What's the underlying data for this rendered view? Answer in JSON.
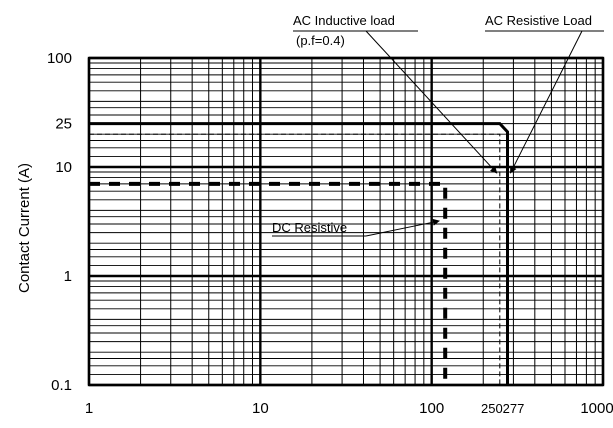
{
  "chart_data": {
    "type": "line",
    "title": "",
    "xlabel": "",
    "ylabel": "Contact Current (A)",
    "x_scale": "log",
    "y_scale": "log",
    "xlim": [
      1,
      1000
    ],
    "ylim": [
      0.1,
      100
    ],
    "grid": true,
    "x_tick_labels": [
      "1",
      "10",
      "100",
      "250",
      "277",
      "1000"
    ],
    "y_tick_labels": [
      "100",
      "25",
      "10",
      "1",
      "0.1"
    ],
    "series": [
      {
        "name": "AC Resistive Load",
        "style": "solid-thick",
        "x": [
          1,
          250,
          277,
          277
        ],
        "y": [
          25,
          25,
          21,
          0.1
        ]
      },
      {
        "name": "AC Inductive load (p.f=0.4)",
        "style": "dashed-thin",
        "x": [
          1,
          250,
          250
        ],
        "y": [
          20,
          20,
          0.1
        ]
      },
      {
        "name": "DC Resistive",
        "style": "dashed-thick",
        "x": [
          1,
          120,
          120
        ],
        "y": [
          7,
          7,
          0.1
        ]
      }
    ],
    "annotations": [
      {
        "id": "ac_inductive",
        "line1": "AC Inductive load",
        "line2": "(p.f=0.4)"
      },
      {
        "id": "ac_resistive",
        "text": "AC Resistive Load"
      },
      {
        "id": "dc_resistive",
        "text": "DC Resistive"
      }
    ]
  }
}
